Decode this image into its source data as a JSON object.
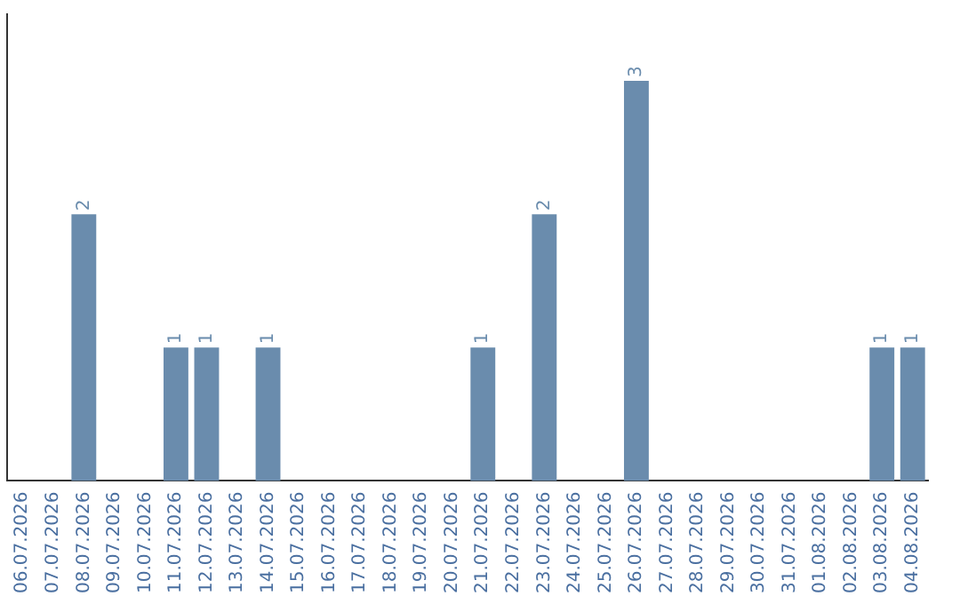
{
  "chart_data": {
    "type": "bar",
    "categories": [
      "06.07.2026",
      "07.07.2026",
      "08.07.2026",
      "09.07.2026",
      "10.07.2026",
      "11.07.2026",
      "12.07.2026",
      "13.07.2026",
      "14.07.2026",
      "15.07.2026",
      "16.07.2026",
      "17.07.2026",
      "18.07.2026",
      "19.07.2026",
      "20.07.2026",
      "21.07.2026",
      "22.07.2026",
      "23.07.2026",
      "24.07.2026",
      "25.07.2026",
      "26.07.2026",
      "27.07.2026",
      "28.07.2026",
      "29.07.2026",
      "30.07.2026",
      "31.07.2026",
      "01.08.2026",
      "02.08.2026",
      "03.08.2026",
      "04.08.2026"
    ],
    "values": [
      0,
      0,
      2,
      0,
      0,
      1,
      1,
      0,
      1,
      0,
      0,
      0,
      0,
      0,
      0,
      1,
      0,
      2,
      0,
      0,
      3,
      0,
      0,
      0,
      0,
      0,
      0,
      0,
      1,
      1
    ],
    "value_labels": [
      null,
      null,
      "2",
      null,
      null,
      "1",
      "1",
      null,
      "1",
      null,
      null,
      null,
      null,
      null,
      null,
      "1",
      null,
      "2",
      null,
      null,
      "3",
      null,
      null,
      null,
      null,
      null,
      null,
      null,
      "1",
      "1"
    ],
    "color": "#6a8cad",
    "grid": false,
    "legend": false,
    "tick_labels": "x"
  }
}
